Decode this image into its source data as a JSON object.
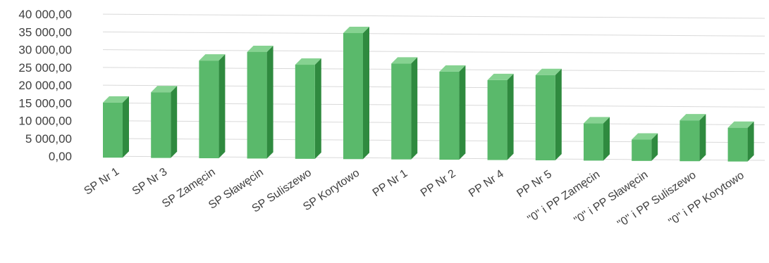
{
  "chart_data": {
    "type": "bar",
    "title": "",
    "xlabel": "",
    "ylabel": "",
    "ylim": [
      0,
      40000
    ],
    "yticks": [
      "0,00",
      "5 000,00",
      "10 000,00",
      "15 000,00",
      "20 000,00",
      "25 000,00",
      "30 000,00",
      "35 000,00",
      "40 000,00"
    ],
    "grid": true,
    "style": "3d-column",
    "colors": {
      "front": "#5ab96b",
      "side": "#2f8a3f",
      "top": "#86d291"
    },
    "categories": [
      "SP Nr 1",
      "SP Nr 3",
      "SP Zamęcin",
      "SP Sławęcin",
      "SP Suliszewo",
      "SP Korytowo",
      "PP Nr 1",
      "PP Nr 2",
      "PP Nr 4",
      "PP Nr 5",
      "\"0\" i PP Zamęcin",
      "\"0\" i PP Sławęcin",
      "\"0\" i PP Suliszewo",
      "\"0\" i PP Korytowo"
    ],
    "values": [
      15500,
      18500,
      27500,
      30000,
      26500,
      35500,
      27000,
      24800,
      22500,
      24000,
      10500,
      6000,
      11500,
      9500
    ]
  }
}
